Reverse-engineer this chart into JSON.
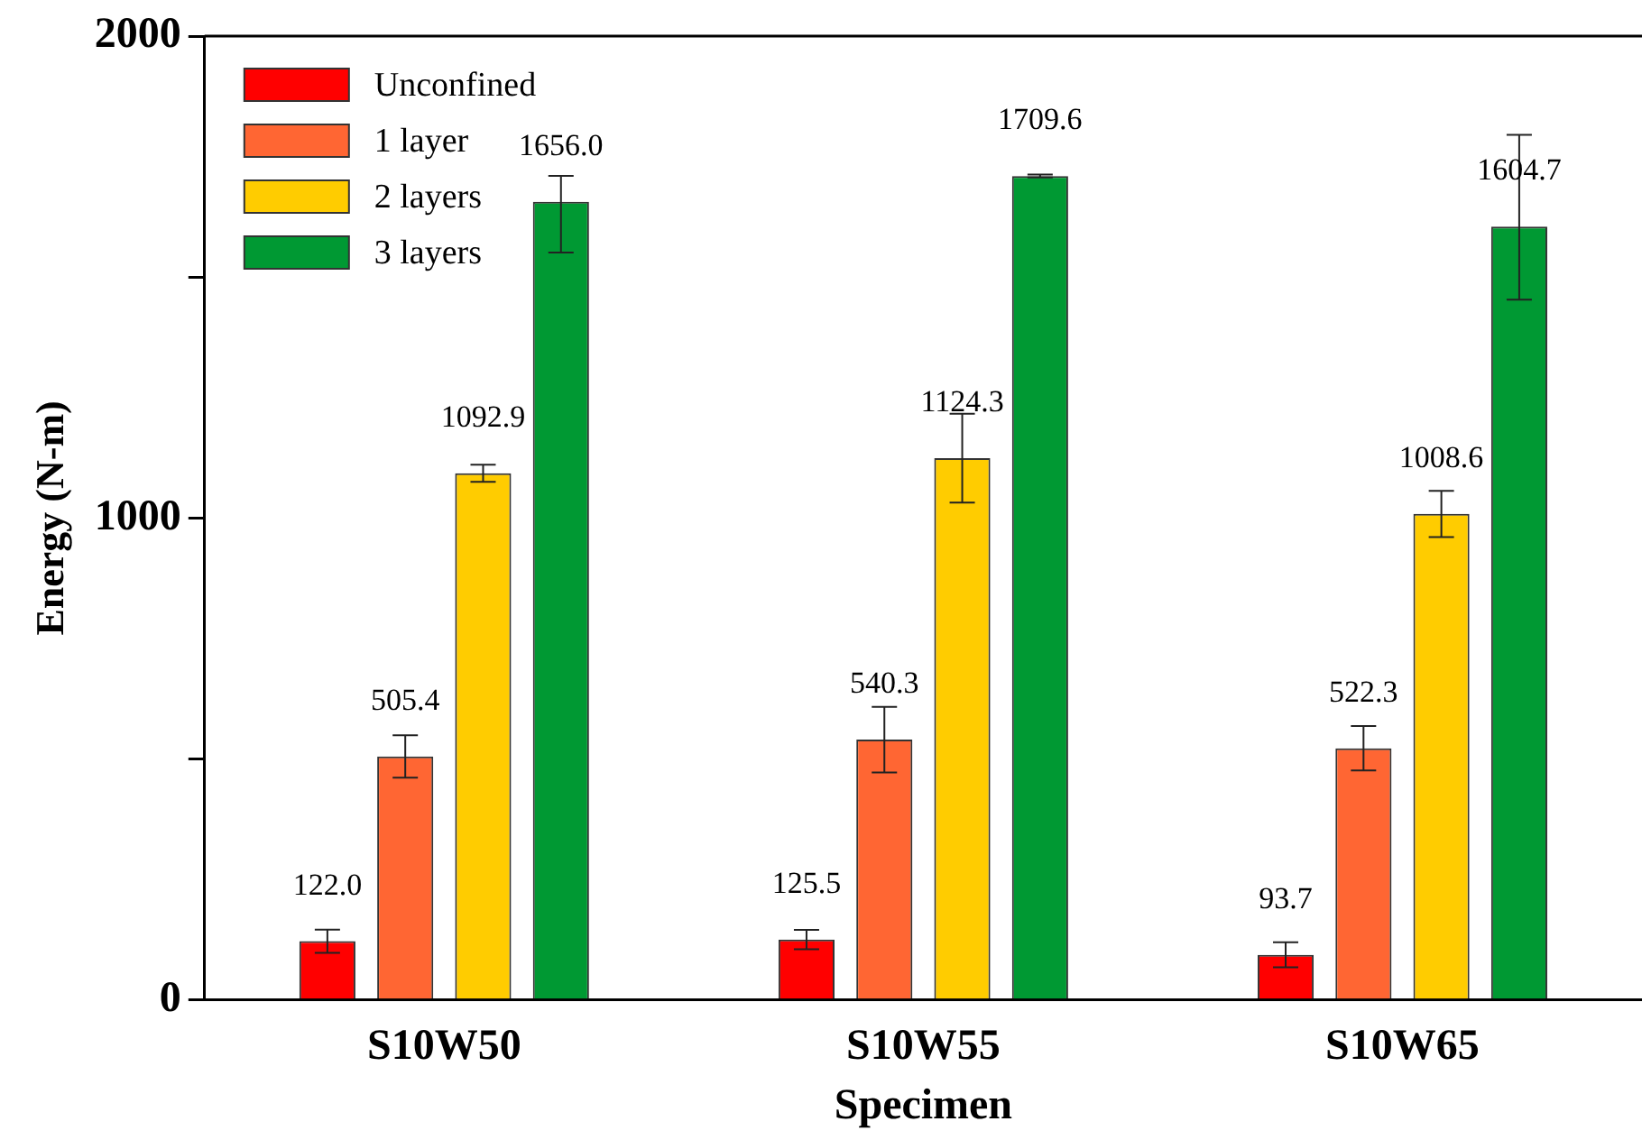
{
  "chart_data": {
    "type": "bar",
    "xlabel": "Specimen",
    "ylabel": "Energy (N-m)",
    "categories": [
      "S10W50",
      "S10W55",
      "S10W65"
    ],
    "series": [
      {
        "name": "Unconfined",
        "color": "#ff0000",
        "values": [
          122.0,
          125.5,
          93.7
        ],
        "errors": [
          24,
          20,
          26
        ],
        "value_labels": [
          "122.0",
          "125.5",
          "93.7"
        ]
      },
      {
        "name": "1 layer",
        "color": "#ff6633",
        "values": [
          505.4,
          540.3,
          522.3
        ],
        "errors": [
          44,
          68,
          46
        ],
        "value_labels": [
          "505.4",
          "540.3",
          "522.3"
        ]
      },
      {
        "name": "2 layers",
        "color": "#ffcc00",
        "values": [
          1092.9,
          1124.3,
          1008.6
        ],
        "errors": [
          18,
          92,
          48
        ],
        "value_labels": [
          "1092.9",
          "1124.3",
          "1008.6"
        ]
      },
      {
        "name": "3 layers",
        "color": "#009933",
        "values": [
          1656.0,
          1709.6,
          1604.7
        ],
        "errors": [
          [
            1551,
            1710
          ],
          3,
          [
            1453,
            1795
          ]
        ],
        "value_labels": [
          "1656.0",
          "1709.6",
          "1604.7"
        ]
      }
    ],
    "ylim": [
      0,
      2000
    ],
    "yticks": [
      0,
      {
        "value": 500,
        "label": null
      },
      1000,
      {
        "value": 1500,
        "label": null
      },
      2000
    ],
    "legend": "top left"
  }
}
